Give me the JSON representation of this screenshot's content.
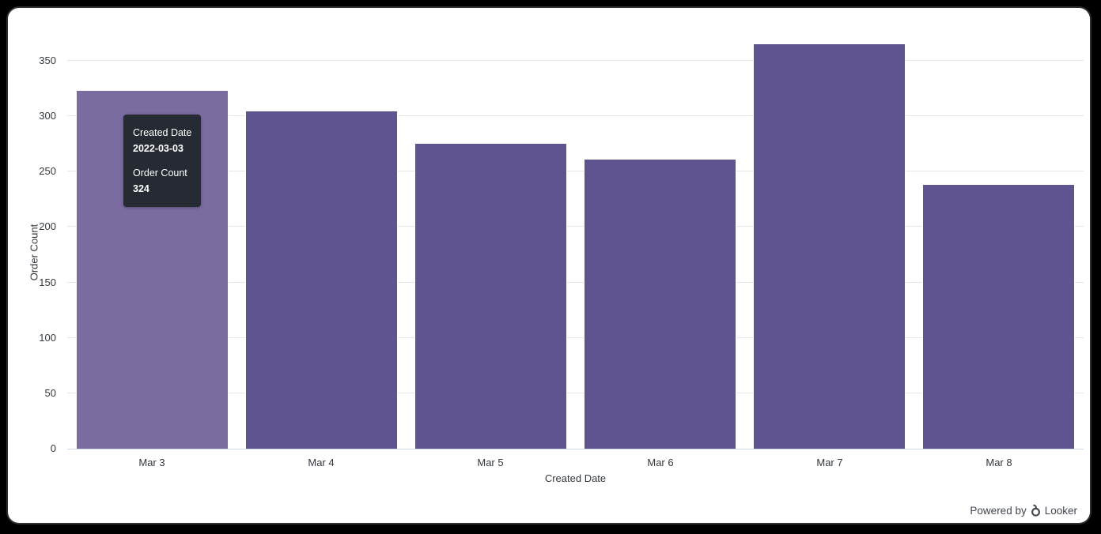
{
  "page": {
    "background": "#000000",
    "card_background": "#ffffff"
  },
  "chart_data": {
    "type": "bar",
    "title": "",
    "categories": [
      "Mar 3",
      "Mar 4",
      "Mar 5",
      "Mar 6",
      "Mar 7",
      "Mar 8"
    ],
    "values": [
      324,
      305,
      276,
      262,
      366,
      239
    ],
    "xlabel": "Created Date",
    "ylabel": "Order Count",
    "ylim": [
      0,
      375
    ],
    "yticks": [
      0,
      50,
      100,
      150,
      200,
      250,
      300,
      350
    ],
    "grid": true,
    "legend": "none",
    "bar_color": "#5f5490",
    "bar_hover_color": "#7a6ba0",
    "bar_border_color": "#ffffff",
    "highlighted_index": 0,
    "gridline_color": "#e6e6e6",
    "axis_line_color": "#ccd6eb",
    "tick_label_color": "#33383d"
  },
  "tooltip": {
    "dimension_label": "Created Date",
    "dimension_value": "2022-03-03",
    "measure_label": "Order Count",
    "measure_value": "324",
    "background": "#262b33"
  },
  "footer": {
    "powered_by": "Powered by",
    "brand": "Looker"
  }
}
